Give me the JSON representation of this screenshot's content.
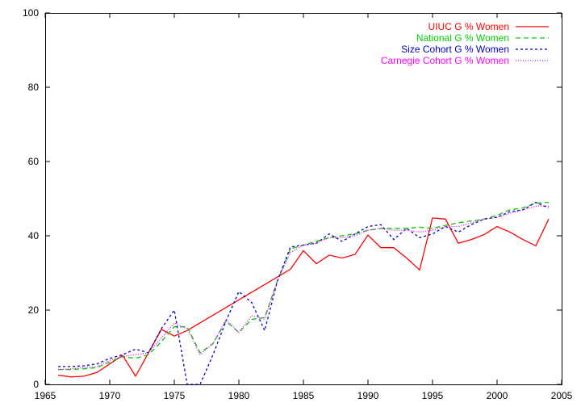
{
  "chart_data": {
    "type": "line",
    "title": "",
    "xlabel": "",
    "ylabel": "",
    "xlim": [
      1965,
      2005
    ],
    "ylim": [
      0,
      100
    ],
    "xticks": [
      1965,
      1970,
      1975,
      1980,
      1985,
      1990,
      1995,
      2000,
      2005
    ],
    "yticks": [
      0,
      20,
      40,
      60,
      80,
      100
    ],
    "grid": false,
    "legend_position": "top-right",
    "series": [
      {
        "name": "UIUC G % Women",
        "color": "#ff0000",
        "dash": "solid",
        "x": [
          1966,
          1967,
          1968,
          1969,
          1970,
          1971,
          1972,
          1973,
          1974,
          1975,
          1976,
          1984,
          1985,
          1986,
          1987,
          1988,
          1989,
          1990,
          1991,
          1992,
          1993,
          1994,
          1995,
          1996,
          1997,
          1998,
          1999,
          2000,
          2001,
          2002,
          2003,
          2004
        ],
        "y": [
          2.5,
          2.0,
          2.2,
          3.2,
          5.5,
          7.8,
          2.2,
          8.5,
          14.8,
          13.0,
          14.5,
          31.0,
          36.0,
          32.5,
          34.8,
          34.0,
          35.0,
          40.2,
          36.8,
          36.8,
          34.0,
          30.8,
          44.8,
          44.5,
          38.0,
          39.0,
          40.3,
          42.5,
          41.0,
          39.0,
          37.3,
          44.5
        ]
      },
      {
        "name": "National G % Women",
        "color": "#00cc00",
        "dash": "6,4",
        "x": [
          1966,
          1967,
          1968,
          1969,
          1970,
          1971,
          1972,
          1973,
          1974,
          1975,
          1976,
          1977,
          1978,
          1979,
          1980,
          1981,
          1982,
          1983,
          1984,
          1985,
          1986,
          1987,
          1988,
          1989,
          1990,
          1991,
          1992,
          1993,
          1994,
          1995,
          1996,
          1997,
          1998,
          1999,
          2000,
          2001,
          2002,
          2003,
          2004
        ],
        "y": [
          4.0,
          4.0,
          4.2,
          4.5,
          6.0,
          7.5,
          7.0,
          8.0,
          11.5,
          15.5,
          15.5,
          8.5,
          11.0,
          17.0,
          14.0,
          17.5,
          18.0,
          28.0,
          36.5,
          37.5,
          38.5,
          39.5,
          40.0,
          40.5,
          41.5,
          42.0,
          42.0,
          42.0,
          42.3,
          42.0,
          42.8,
          43.5,
          44.0,
          44.5,
          45.5,
          47.0,
          47.5,
          48.8,
          49.0
        ]
      },
      {
        "name": "Size Cohort G % Women",
        "color": "#0000cc",
        "dash": "3,3",
        "x": [
          1966,
          1967,
          1968,
          1969,
          1970,
          1971,
          1972,
          1973,
          1974,
          1975,
          1976,
          1976.5,
          1977,
          1978,
          1979,
          1980,
          1981,
          1982,
          1983,
          1984,
          1985,
          1986,
          1987,
          1988,
          1989,
          1990,
          1991,
          1992,
          1993,
          1994,
          1995,
          1996,
          1997,
          1998,
          1999,
          2000,
          2001,
          2002,
          2003,
          2004
        ],
        "y": [
          4.8,
          4.8,
          5.0,
          5.5,
          7.0,
          8.0,
          9.5,
          8.5,
          15.0,
          20.0,
          0.0,
          0.0,
          0.0,
          8.0,
          17.0,
          25.0,
          22.0,
          14.5,
          28.0,
          37.0,
          37.5,
          38.0,
          40.5,
          38.5,
          40.5,
          42.5,
          43.0,
          39.0,
          42.0,
          39.5,
          40.5,
          42.5,
          41.0,
          43.0,
          44.5,
          45.0,
          46.5,
          47.0,
          49.0,
          47.5
        ]
      },
      {
        "name": "Carnegie Cohort G % Women",
        "color": "#ff00ff",
        "dash": "1,2",
        "x": [
          1966,
          1967,
          1968,
          1969,
          1970,
          1971,
          1972,
          1973,
          1974,
          1975,
          1976,
          1977,
          1978,
          1979,
          1980,
          1981,
          1982,
          1983,
          1984,
          1985,
          1986,
          1987,
          1988,
          1989,
          1990,
          1991,
          1992,
          1993,
          1994,
          1995,
          1996,
          1997,
          1998,
          1999,
          2000,
          2001,
          2002,
          2003,
          2004
        ],
        "y": [
          4.0,
          4.2,
          4.5,
          4.8,
          6.5,
          7.5,
          8.0,
          8.5,
          12.5,
          16.5,
          15.0,
          8.0,
          11.0,
          17.5,
          14.0,
          18.5,
          17.5,
          28.0,
          35.5,
          37.5,
          38.0,
          39.5,
          39.5,
          40.0,
          41.5,
          42.0,
          41.5,
          41.5,
          41.0,
          41.5,
          42.5,
          42.5,
          43.5,
          44.5,
          45.0,
          46.0,
          47.0,
          48.0,
          48.0
        ]
      }
    ]
  }
}
